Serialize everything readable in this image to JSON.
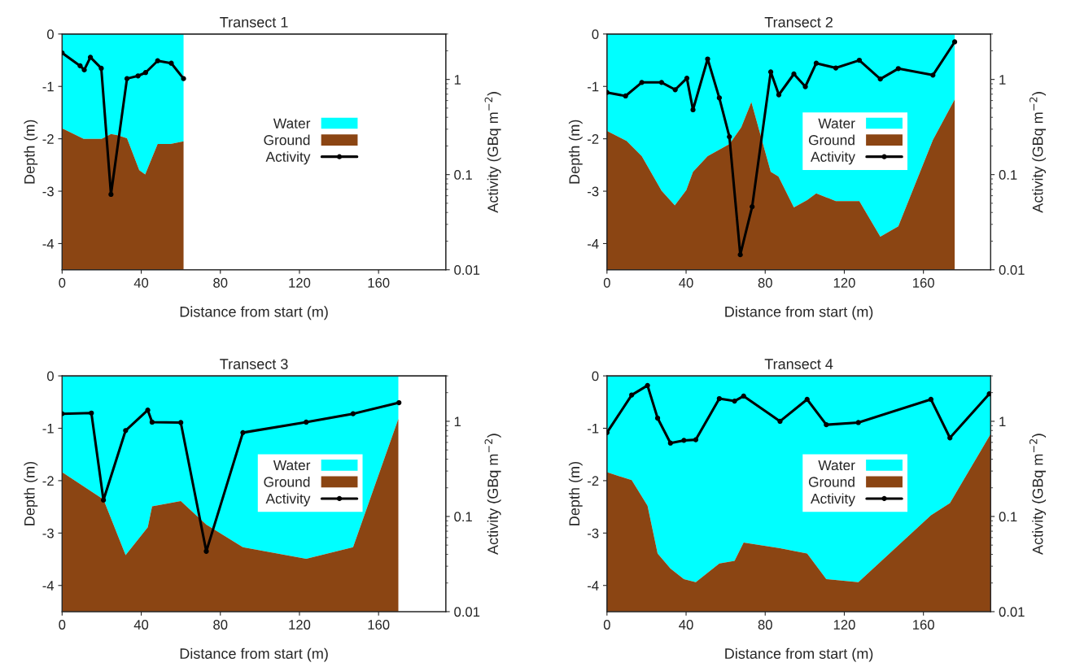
{
  "chart_data": [
    {
      "type": "area",
      "stacked": true,
      "title": "Transect 1",
      "xlabel": "Distance from start (m)",
      "ylabel": "Depth (m)",
      "y2label": "Activity (GBq m$^{−2}$)",
      "xlim": [
        0,
        194
      ],
      "xticks": [
        0,
        40,
        80,
        120,
        160
      ],
      "ylim": [
        -4.5,
        0
      ],
      "yticks": [
        0,
        -1,
        -2,
        -3,
        -4
      ],
      "y2lim": [
        0.01,
        3
      ],
      "y2ticks": [
        0.01,
        0.1,
        1
      ],
      "log": "y2",
      "legend": "right",
      "x": [
        0,
        10.9,
        20,
        24.7,
        28,
        32.8,
        39,
        42,
        48.3,
        54.8,
        61.4
      ],
      "series": [
        {
          "name": "Water",
          "color": "#00ffff",
          "values": [
            -1.8,
            -2.0,
            -2.0,
            -1.91,
            -1.93,
            -1.99,
            -2.6,
            -2.68,
            -2.1,
            -2.1,
            -2.05
          ]
        },
        {
          "name": "Ground",
          "color": "#8b4513",
          "values": [
            -2.7,
            -2.5,
            -2.5,
            -2.59,
            -2.57,
            -2.51,
            -1.9,
            -1.82,
            -2.4,
            -2.4,
            -2.45
          ]
        },
        {
          "name": "Activity",
          "type": "line",
          "axis": "y2",
          "color": "#000000",
          "marker": "circle",
          "x": [
            0,
            9.1,
            11.2,
            14.3,
            19.8,
            24.7,
            32.8,
            38.4,
            42.2,
            48.3,
            55.2,
            61.4
          ],
          "values": [
            1.9,
            1.39,
            1.26,
            1.71,
            1.31,
            0.062,
            1.02,
            1.09,
            1.18,
            1.57,
            1.48,
            1.02
          ]
        }
      ]
    },
    {
      "type": "area",
      "stacked": true,
      "title": "Transect 2",
      "xlabel": "Distance from start (m)",
      "ylabel": "Depth (m)",
      "y2label": "Activity (GBq m$^{−2}$)",
      "xlim": [
        0,
        194
      ],
      "xticks": [
        0,
        40,
        80,
        120,
        160
      ],
      "ylim": [
        -4.5,
        0
      ],
      "yticks": [
        0,
        -1,
        -2,
        -3,
        -4
      ],
      "y2lim": [
        0.01,
        3
      ],
      "y2ticks": [
        0.01,
        0.1,
        1
      ],
      "log": "y2",
      "legend": "right",
      "x": [
        0,
        9.9,
        17.6,
        27.6,
        34.3,
        40.1,
        43.5,
        50.9,
        62,
        67.9,
        73,
        82.8,
        86.7,
        94.5,
        101.2,
        105.8,
        115.7,
        127.6,
        138.2,
        147.3,
        164.8,
        175.8
      ],
      "series": [
        {
          "name": "Water",
          "color": "#00ffff",
          "values": [
            -1.85,
            -2.04,
            -2.33,
            -2.99,
            -3.27,
            -2.98,
            -2.63,
            -2.33,
            -2.1,
            -1.78,
            -1.3,
            -2.63,
            -2.72,
            -3.31,
            -3.17,
            -3.04,
            -3.19,
            -3.19,
            -3.87,
            -3.67,
            -2.02,
            -1.25
          ]
        },
        {
          "name": "Ground",
          "color": "#8b4513",
          "values": [
            -2.65,
            -2.46,
            -2.17,
            -1.51,
            -1.23,
            -1.52,
            -1.87,
            -2.17,
            -2.4,
            -2.72,
            -3.2,
            -1.87,
            -1.78,
            -1.19,
            -1.33,
            -1.46,
            -1.31,
            -1.31,
            -0.63,
            -0.83,
            -2.48,
            -3.25
          ]
        },
        {
          "name": "Activity",
          "type": "line",
          "axis": "y2",
          "color": "#000000",
          "marker": "circle",
          "x": [
            0,
            9.4,
            17.6,
            27.6,
            34.5,
            40.4,
            43.5,
            50.9,
            56.8,
            61.9,
            67.4,
            73.4,
            82.8,
            86.9,
            94.5,
            100.3,
            105.8,
            115.7,
            127.6,
            138.2,
            147.3,
            164.8,
            175.8
          ],
          "values": [
            0.73,
            0.67,
            0.93,
            0.93,
            0.78,
            1.03,
            0.48,
            1.64,
            0.64,
            0.25,
            0.0144,
            0.046,
            1.2,
            0.69,
            1.14,
            0.84,
            1.48,
            1.32,
            1.59,
            1.01,
            1.3,
            1.11,
            2.48
          ]
        }
      ]
    },
    {
      "type": "area",
      "stacked": true,
      "title": "Transect 3",
      "xlabel": "Distance from start (m)",
      "ylabel": "Depth (m)",
      "y2label": "Activity (GBq m$^{−2}$)",
      "xlim": [
        0,
        194
      ],
      "xticks": [
        0,
        40,
        80,
        120,
        160
      ],
      "ylim": [
        -4.5,
        0
      ],
      "yticks": [
        0,
        -1,
        -2,
        -3,
        -4
      ],
      "y2lim": [
        0.01,
        3
      ],
      "y2ticks": [
        0.01,
        0.1,
        1
      ],
      "log": "y2",
      "legend": "right",
      "x": [
        0,
        20.9,
        32.1,
        43.3,
        45.5,
        60,
        72.9,
        91.4,
        123.4,
        147.1,
        170
      ],
      "series": [
        {
          "name": "Water",
          "color": "#00ffff",
          "values": [
            -1.84,
            -2.36,
            -3.42,
            -2.89,
            -2.49,
            -2.39,
            -2.84,
            -3.27,
            -3.49,
            -3.27,
            -0.82
          ]
        },
        {
          "name": "Ground",
          "color": "#8b4513",
          "values": [
            -2.66,
            -2.14,
            -1.08,
            -1.61,
            -2.01,
            -2.11,
            -1.66,
            -1.23,
            -1.01,
            -1.23,
            -3.68
          ]
        },
        {
          "name": "Activity",
          "type": "line",
          "axis": "y2",
          "color": "#000000",
          "marker": "circle",
          "x": [
            0,
            14.8,
            20.9,
            32.1,
            43.3,
            45.5,
            60,
            72.9,
            91.4,
            123.4,
            147.1,
            170.3
          ],
          "values": [
            1.2,
            1.22,
            0.149,
            0.8,
            1.31,
            0.98,
            0.97,
            0.043,
            0.76,
            0.98,
            1.2,
            1.57
          ]
        }
      ]
    },
    {
      "type": "area",
      "stacked": true,
      "title": "Transect 4",
      "xlabel": "Distance from start (m)",
      "ylabel": "Depth (m)",
      "y2label": "Activity (GBq m$^{−2}$)",
      "xlim": [
        0,
        194
      ],
      "xticks": [
        0,
        40,
        80,
        120,
        160
      ],
      "ylim": [
        -4.5,
        0
      ],
      "yticks": [
        0,
        -1,
        -2,
        -3,
        -4
      ],
      "y2lim": [
        0.01,
        3
      ],
      "y2ticks": [
        0.01,
        0.1,
        1
      ],
      "log": "y2",
      "legend": "right",
      "x": [
        0,
        12.5,
        20.5,
        25.6,
        32.1,
        38.9,
        44.9,
        56.8,
        64.5,
        69.1,
        87.5,
        101.2,
        110.9,
        127.1,
        163.8,
        173.4,
        194
      ],
      "series": [
        {
          "name": "Water",
          "color": "#00ffff",
          "values": [
            -1.84,
            -1.99,
            -2.48,
            -3.39,
            -3.68,
            -3.88,
            -3.94,
            -3.58,
            -3.53,
            -3.18,
            -3.29,
            -3.39,
            -3.88,
            -3.94,
            -2.66,
            -2.43,
            -1.11
          ]
        },
        {
          "name": "Ground",
          "color": "#8b4513",
          "values": [
            -2.66,
            -2.51,
            -2.02,
            -1.11,
            -0.82,
            -0.62,
            -0.56,
            -0.92,
            -0.97,
            -1.32,
            -1.21,
            -1.11,
            -0.62,
            -0.56,
            -1.84,
            -2.07,
            -3.39
          ]
        },
        {
          "name": "Activity",
          "type": "line",
          "axis": "y2",
          "color": "#000000",
          "marker": "circle",
          "x": [
            0,
            12.5,
            20.5,
            25.6,
            32.1,
            38.9,
            44.9,
            56.8,
            64.5,
            69.1,
            87.5,
            101.2,
            110.9,
            127.1,
            163.8,
            173.4,
            193.3
          ],
          "values": [
            0.76,
            1.89,
            2.38,
            1.08,
            0.59,
            0.63,
            0.64,
            1.73,
            1.63,
            1.84,
            1.0,
            1.7,
            0.92,
            0.97,
            1.7,
            0.67,
            1.94
          ]
        }
      ]
    }
  ]
}
